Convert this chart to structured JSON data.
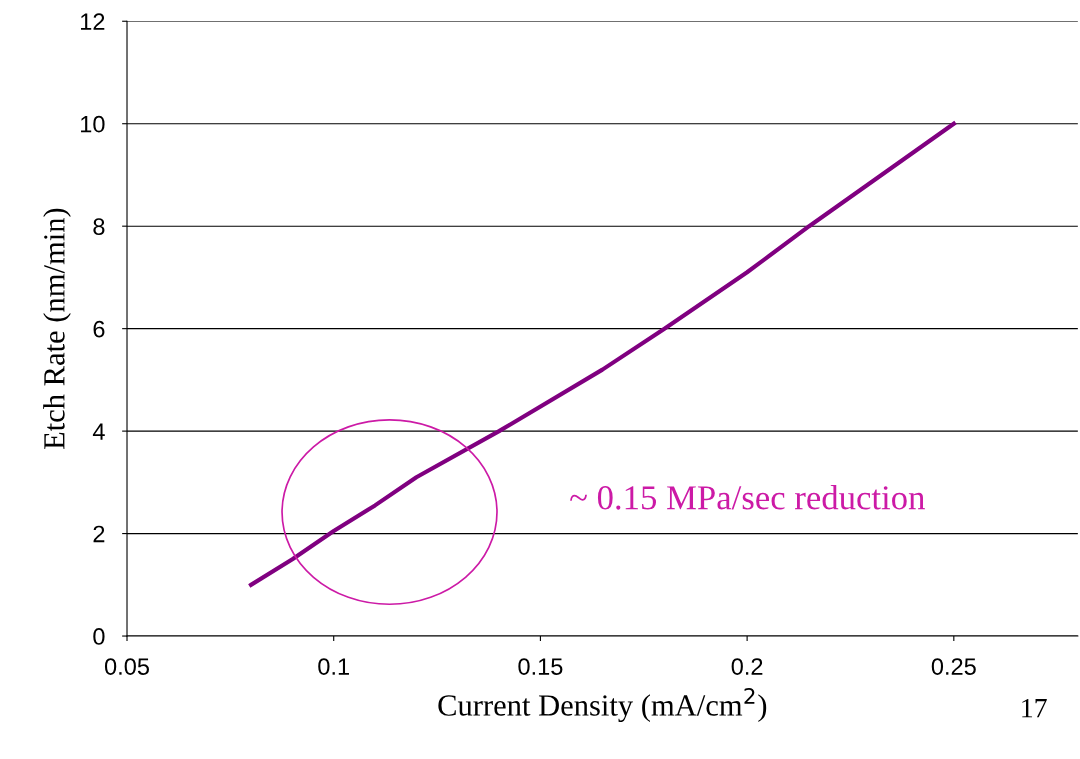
{
  "chart_data": {
    "type": "line",
    "xlabel": "Current Density (mA/cm$^{2}$)",
    "ylabel": "Etch Rate (nm/min)",
    "x": [
      0.08,
      0.09,
      0.1,
      0.11,
      0.12,
      0.14,
      0.165,
      0.18,
      0.2,
      0.215,
      0.25
    ],
    "series": [
      {
        "color": "#800080",
        "values": [
          1.0,
          1.5,
          2.05,
          2.55,
          3.1,
          4.0,
          5.2,
          6.0,
          7.1,
          8.0,
          10.0
        ]
      }
    ],
    "xlim": [
      0.05,
      0.28
    ],
    "xticks": [
      0.05,
      0.1,
      0.15,
      0.2,
      0.25
    ],
    "ylim": [
      0,
      12
    ],
    "yticks": [
      0,
      2,
      4,
      6,
      8,
      10,
      12
    ],
    "grid": "y",
    "legend": false,
    "marker": "none",
    "line_style": "solid",
    "annotations": [
      "~ 0.15 MPa/sec reduction",
      "17"
    ]
  }
}
